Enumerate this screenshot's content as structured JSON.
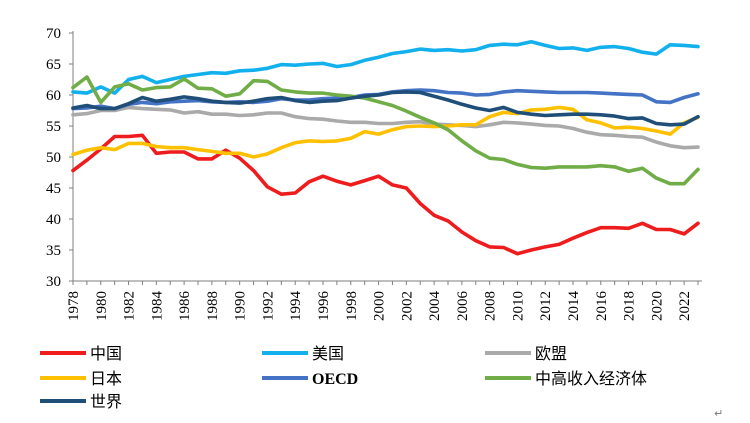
{
  "chart_data": {
    "type": "line",
    "title": "",
    "xlabel": "",
    "ylabel": "",
    "ylim": [
      30,
      70
    ],
    "yticks": [
      30,
      35,
      40,
      45,
      50,
      55,
      60,
      65,
      70
    ],
    "xlim": [
      1978,
      2023
    ],
    "xtick_labels": [
      "1978",
      "1980",
      "1982",
      "1984",
      "1986",
      "1988",
      "1990",
      "1992",
      "1994",
      "1996",
      "1998",
      "2000",
      "2002",
      "2004",
      "2006",
      "2008",
      "2010",
      "2012",
      "2014",
      "2016",
      "2018",
      "2020",
      "2022"
    ],
    "grid": false,
    "legend_position": "bottom",
    "x": [
      1978,
      1979,
      1980,
      1981,
      1982,
      1983,
      1984,
      1985,
      1986,
      1987,
      1988,
      1989,
      1990,
      1991,
      1992,
      1993,
      1994,
      1995,
      1996,
      1997,
      1998,
      1999,
      2000,
      2001,
      2002,
      2003,
      2004,
      2005,
      2006,
      2007,
      2008,
      2009,
      2010,
      2011,
      2012,
      2013,
      2014,
      2015,
      2016,
      2017,
      2018,
      2019,
      2020,
      2021,
      2022,
      2023
    ],
    "series": [
      {
        "name": "中国",
        "color": "#ee1c1c",
        "values": [
          47.8,
          49.5,
          51.3,
          53.3,
          53.3,
          53.5,
          50.6,
          50.8,
          50.8,
          49.7,
          49.7,
          51.1,
          49.8,
          47.8,
          45.2,
          44.0,
          44.2,
          46.0,
          46.9,
          46.1,
          45.5,
          46.2,
          46.9,
          45.5,
          45.0,
          42.5,
          40.6,
          39.7,
          37.9,
          36.5,
          35.5,
          35.4,
          34.4,
          35.0,
          35.5,
          35.9,
          36.9,
          37.8,
          38.6,
          38.6,
          38.5,
          39.3,
          38.3,
          38.3,
          37.6,
          39.3
        ]
      },
      {
        "name": "美国",
        "color": "#13b0ee",
        "values": [
          60.5,
          60.3,
          61.3,
          60.3,
          62.5,
          63.0,
          62.0,
          62.5,
          63.0,
          63.3,
          63.6,
          63.5,
          63.9,
          64.0,
          64.3,
          64.9,
          64.8,
          65.0,
          65.1,
          64.6,
          64.9,
          65.6,
          66.1,
          66.7,
          67.0,
          67.4,
          67.2,
          67.3,
          67.1,
          67.3,
          68.0,
          68.2,
          68.1,
          68.6,
          68.0,
          67.5,
          67.6,
          67.2,
          67.7,
          67.8,
          67.5,
          66.9,
          66.6,
          68.1,
          68.0,
          67.8
        ]
      },
      {
        "name": "欧盟",
        "color": "#aaaaaa",
        "values": [
          56.8,
          57.0,
          57.5,
          57.5,
          58.0,
          57.8,
          57.7,
          57.6,
          57.1,
          57.3,
          56.9,
          56.9,
          56.7,
          56.8,
          57.1,
          57.1,
          56.5,
          56.2,
          56.1,
          55.8,
          55.6,
          55.6,
          55.4,
          55.4,
          55.6,
          55.7,
          55.3,
          55.2,
          55.1,
          54.9,
          55.2,
          55.6,
          55.5,
          55.3,
          55.1,
          55.0,
          54.6,
          54.0,
          53.6,
          53.5,
          53.3,
          53.2,
          52.4,
          51.8,
          51.5,
          51.6
        ]
      },
      {
        "name": "日本",
        "color": "#ffc000",
        "values": [
          50.4,
          51.1,
          51.5,
          51.2,
          52.2,
          52.2,
          51.7,
          51.5,
          51.5,
          51.2,
          50.9,
          50.6,
          50.6,
          50.0,
          50.5,
          51.5,
          52.3,
          52.6,
          52.5,
          52.6,
          53.0,
          54.1,
          53.7,
          54.4,
          54.9,
          55.0,
          54.9,
          55.0,
          55.2,
          55.2,
          56.5,
          57.2,
          57.0,
          57.6,
          57.7,
          58.0,
          57.7,
          56.0,
          55.5,
          54.7,
          54.8,
          54.6,
          54.2,
          53.7,
          55.5,
          56.4
        ]
      },
      {
        "name": "OECD",
        "color": "#4472c4",
        "values": [
          57.8,
          57.9,
          58.2,
          57.8,
          58.5,
          58.8,
          58.6,
          58.9,
          59.0,
          59.1,
          58.9,
          58.8,
          58.9,
          58.8,
          59.0,
          59.4,
          59.2,
          59.2,
          59.4,
          59.5,
          59.6,
          60.0,
          60.1,
          60.5,
          60.7,
          60.8,
          60.7,
          60.4,
          60.3,
          60.0,
          60.1,
          60.5,
          60.7,
          60.6,
          60.5,
          60.4,
          60.4,
          60.4,
          60.3,
          60.2,
          60.1,
          60.0,
          58.9,
          58.8,
          59.6,
          60.2
        ]
      },
      {
        "name": "中高收入经济体",
        "color": "#70ad47",
        "values": [
          61.2,
          62.9,
          58.8,
          61.3,
          61.8,
          60.8,
          61.2,
          61.3,
          62.6,
          61.1,
          61.0,
          59.8,
          60.2,
          62.3,
          62.2,
          60.8,
          60.5,
          60.3,
          60.3,
          60.0,
          59.8,
          59.5,
          58.9,
          58.3,
          57.4,
          56.4,
          55.5,
          54.4,
          52.6,
          51.0,
          49.8,
          49.6,
          48.8,
          48.3,
          48.2,
          48.4,
          48.4,
          48.4,
          48.6,
          48.4,
          47.7,
          48.2,
          46.6,
          45.7,
          45.7,
          48.0
        ]
      },
      {
        "name": "世界",
        "color": "#1f4e79",
        "values": [
          57.9,
          58.3,
          57.8,
          57.8,
          58.6,
          59.6,
          59.0,
          59.3,
          59.7,
          59.4,
          59.0,
          58.8,
          58.7,
          59.0,
          59.4,
          59.6,
          59.1,
          58.8,
          59.0,
          59.1,
          59.5,
          59.8,
          60.0,
          60.4,
          60.5,
          60.4,
          59.8,
          59.2,
          58.5,
          57.9,
          57.5,
          58.0,
          57.2,
          56.9,
          56.7,
          56.8,
          56.9,
          56.9,
          56.8,
          56.6,
          56.2,
          56.3,
          55.4,
          55.2,
          55.3,
          56.5
        ]
      }
    ]
  },
  "legend": {
    "items": [
      {
        "label": "中国",
        "color": "#ee1c1c"
      },
      {
        "label": "美国",
        "color": "#13b0ee"
      },
      {
        "label": "欧盟",
        "color": "#aaaaaa"
      },
      {
        "label": "日本",
        "color": "#ffc000"
      },
      {
        "label": "OECD",
        "color": "#4472c4"
      },
      {
        "label": "中高收入经济体",
        "color": "#70ad47"
      },
      {
        "label": "世界",
        "color": "#1f4e79"
      }
    ]
  },
  "paragraph_mark": "↵"
}
